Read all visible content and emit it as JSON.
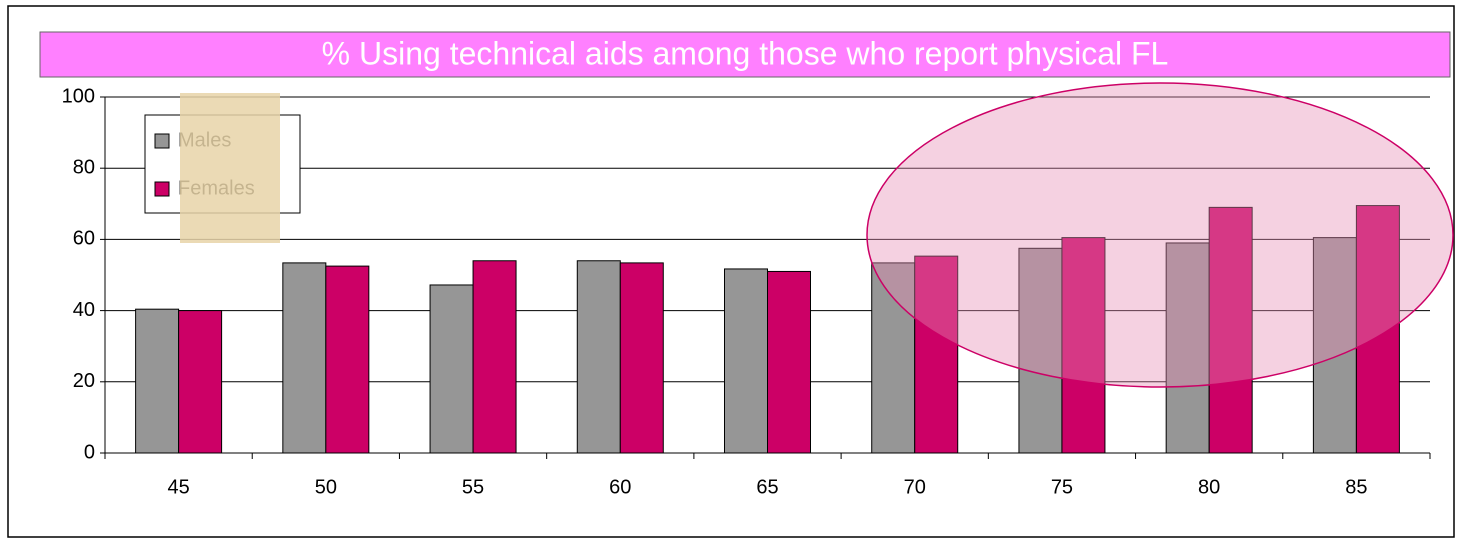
{
  "chart_data": {
    "type": "bar",
    "title": "% Using technical aids among those who report physical FL",
    "categories": [
      "45",
      "50",
      "55",
      "60",
      "65",
      "70",
      "75",
      "80",
      "85"
    ],
    "series": [
      {
        "name": "Males",
        "color": "#969696",
        "values": [
          40.4,
          53.4,
          47.2,
          54,
          51.7,
          53.4,
          57.5,
          59,
          60.5
        ]
      },
      {
        "name": "Females",
        "color": "#cc0066",
        "values": [
          40,
          52.5,
          54,
          53.4,
          51,
          55.3,
          60.5,
          69,
          69.5
        ]
      }
    ],
    "ylim": [
      0,
      100
    ],
    "yticks": [
      0,
      20,
      40,
      60,
      80,
      100
    ],
    "grid": true
  }
}
